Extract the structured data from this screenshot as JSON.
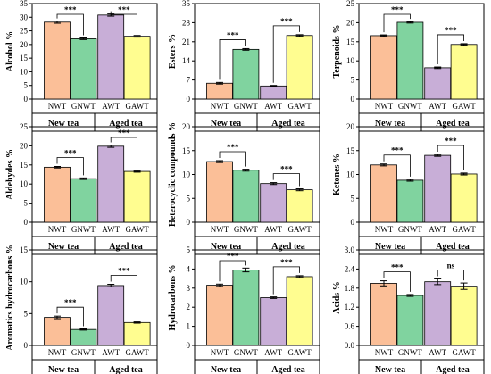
{
  "figure": {
    "colors": {
      "NWT": "#FBBF98",
      "GNWT": "#80D39F",
      "AWT": "#C8AED7",
      "GAWT": "#FFFD90"
    },
    "group_labels": [
      "New tea",
      "Aged tea"
    ]
  },
  "chart_data": [
    {
      "type": "bar",
      "ylabel": "Alcohol %",
      "ylim": [
        0,
        35
      ],
      "yticks": [
        "0",
        "5",
        "10",
        "15",
        "20",
        "25",
        "30",
        "35"
      ],
      "ytick_values": [
        0,
        5,
        10,
        15,
        20,
        25,
        30,
        35
      ],
      "categories": [
        "NWT",
        "GNWT",
        "AWT",
        "GAWT"
      ],
      "values": [
        28.2,
        22.1,
        30.8,
        23.0
      ],
      "errors": [
        0.4,
        0.3,
        0.4,
        0.3
      ],
      "groups": [
        "New tea",
        "Aged tea"
      ],
      "significance": [
        "***",
        "***"
      ]
    },
    {
      "type": "bar",
      "ylabel": "Esters %",
      "ylim": [
        0,
        35
      ],
      "yticks": [
        "0",
        "7",
        "14",
        "21",
        "28",
        "35"
      ],
      "ytick_values": [
        0,
        7,
        14,
        21,
        28,
        35
      ],
      "categories": [
        "NWT",
        "GNWT",
        "AWT",
        "GAWT"
      ],
      "values": [
        5.8,
        18.2,
        4.8,
        23.3
      ],
      "errors": [
        0.3,
        0.3,
        0.2,
        0.3
      ],
      "groups": [
        "New tea",
        "Aged tea"
      ],
      "significance": [
        "***",
        "***"
      ]
    },
    {
      "type": "bar",
      "ylabel": "Terpenoids %",
      "ylim": [
        0,
        25
      ],
      "yticks": [
        "0",
        "5",
        "10",
        "15",
        "20",
        "25"
      ],
      "ytick_values": [
        0,
        5,
        10,
        15,
        20,
        25
      ],
      "categories": [
        "NWT",
        "GNWT",
        "AWT",
        "GAWT"
      ],
      "values": [
        16.6,
        20.1,
        8.2,
        14.3
      ],
      "errors": [
        0.2,
        0.2,
        0.2,
        0.2
      ],
      "groups": [
        "New tea",
        "Aged tea"
      ],
      "significance": [
        "***",
        "***"
      ]
    },
    {
      "type": "bar",
      "ylabel": "Aldehydes %",
      "ylim": [
        0,
        25
      ],
      "yticks": [
        "0",
        "5",
        "10",
        "15",
        "20",
        "25"
      ],
      "ytick_values": [
        0,
        5,
        10,
        15,
        20,
        25
      ],
      "categories": [
        "NWT",
        "GNWT",
        "AWT",
        "GAWT"
      ],
      "values": [
        14.4,
        11.4,
        19.9,
        13.3
      ],
      "errors": [
        0.2,
        0.2,
        0.3,
        0.2
      ],
      "groups": [
        "New tea",
        "Aged tea"
      ],
      "significance": [
        "***",
        "***"
      ]
    },
    {
      "type": "bar",
      "ylabel": "Heterocyclic compounds %",
      "ylim": [
        0,
        20
      ],
      "yticks": [
        "0",
        "5",
        "10",
        "15",
        "20"
      ],
      "ytick_values": [
        0,
        5,
        10,
        15,
        20
      ],
      "categories": [
        "NWT",
        "GNWT",
        "AWT",
        "GAWT"
      ],
      "values": [
        12.7,
        10.9,
        8.1,
        6.8
      ],
      "errors": [
        0.2,
        0.2,
        0.2,
        0.2
      ],
      "groups": [
        "New tea",
        "Aged tea"
      ],
      "significance": [
        "***",
        "***"
      ]
    },
    {
      "type": "bar",
      "ylabel": "Ketones %",
      "ylim": [
        0,
        20
      ],
      "yticks": [
        "0",
        "5",
        "10",
        "15",
        "20"
      ],
      "ytick_values": [
        0,
        5,
        10,
        15,
        20
      ],
      "categories": [
        "NWT",
        "GNWT",
        "AWT",
        "GAWT"
      ],
      "values": [
        12.0,
        8.8,
        14.0,
        10.1
      ],
      "errors": [
        0.2,
        0.2,
        0.2,
        0.2
      ],
      "groups": [
        "New tea",
        "Aged tea"
      ],
      "significance": [
        "***",
        "***"
      ]
    },
    {
      "type": "bar",
      "ylabel": "Aromatics hydrocarbons %",
      "ylim": [
        0,
        15
      ],
      "yticks": [
        "0",
        "5",
        "10",
        "15"
      ],
      "ytick_values": [
        0,
        5,
        10,
        15
      ],
      "categories": [
        "NWT",
        "GNWT",
        "AWT",
        "GAWT"
      ],
      "values": [
        4.4,
        2.5,
        9.4,
        3.6
      ],
      "errors": [
        0.2,
        0.1,
        0.2,
        0.1
      ],
      "groups": [
        "New tea",
        "Aged tea"
      ],
      "significance": [
        "***",
        "***"
      ]
    },
    {
      "type": "bar",
      "ylabel": "Hydrocarbons %",
      "ylim": [
        0,
        5
      ],
      "yticks": [
        "0",
        "1",
        "2",
        "3",
        "4",
        "5"
      ],
      "ytick_values": [
        0,
        1,
        2,
        3,
        4,
        5
      ],
      "categories": [
        "NWT",
        "GNWT",
        "AWT",
        "GAWT"
      ],
      "values": [
        3.15,
        3.95,
        2.5,
        3.6
      ],
      "errors": [
        0.06,
        0.1,
        0.04,
        0.05
      ],
      "groups": [
        "New tea",
        "Aged tea"
      ],
      "significance": [
        "***",
        "***"
      ]
    },
    {
      "type": "bar",
      "ylabel": "Acids %",
      "ylim": [
        0,
        3
      ],
      "yticks": [
        "0.0",
        "0.6",
        "1.2",
        "1.8",
        "2.4",
        "3.0"
      ],
      "ytick_values": [
        0,
        0.6,
        1.2,
        1.8,
        2.4,
        3.0
      ],
      "categories": [
        "NWT",
        "GNWT",
        "AWT",
        "GAWT"
      ],
      "values": [
        1.95,
        1.57,
        2.0,
        1.86
      ],
      "errors": [
        0.08,
        0.03,
        0.09,
        0.1
      ],
      "groups": [
        "New tea",
        "Aged tea"
      ],
      "significance": [
        "***",
        "ns"
      ]
    }
  ]
}
